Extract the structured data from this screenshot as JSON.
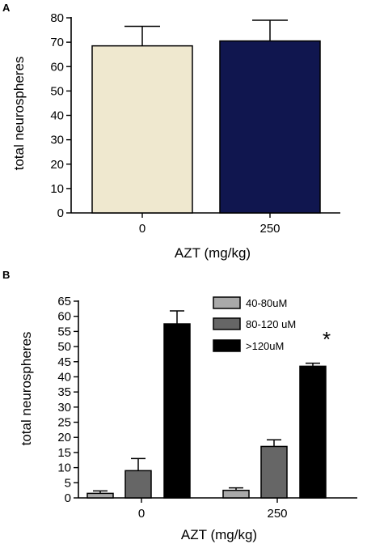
{
  "chart_data": [
    {
      "panel": "A",
      "type": "bar",
      "categories": [
        "0",
        "250"
      ],
      "values": [
        68.5,
        70.5
      ],
      "errors": [
        8,
        8.5
      ],
      "colors": [
        "#efe8cf",
        "#10164f"
      ],
      "xlabel": "AZT (mg/kg)",
      "ylabel": "total neurospheres",
      "ylim": [
        0,
        80
      ],
      "yticks": [
        0,
        10,
        20,
        30,
        40,
        50,
        60,
        70,
        80
      ]
    },
    {
      "panel": "B",
      "type": "bar",
      "categories": [
        "0",
        "250"
      ],
      "series": [
        {
          "name": "40-80uM",
          "values": [
            1.5,
            2.5
          ],
          "errors": [
            0.8,
            0.8
          ],
          "color": "#a9a9a9"
        },
        {
          "name": "80-120 uM",
          "values": [
            9,
            17
          ],
          "errors": [
            4,
            2.2
          ],
          "color": "#666666"
        },
        {
          "name": ">120uM",
          "values": [
            57.5,
            43.5
          ],
          "errors": [
            4.3,
            1
          ],
          "color": "#000000"
        }
      ],
      "xlabel": "AZT (mg/kg)",
      "ylabel": "total neurospheres",
      "ylim": [
        0,
        65
      ],
      "yticks": [
        0,
        5,
        10,
        15,
        20,
        25,
        30,
        35,
        40,
        45,
        50,
        55,
        60,
        65
      ],
      "annotation": "*",
      "legend_position": "top-right"
    }
  ]
}
